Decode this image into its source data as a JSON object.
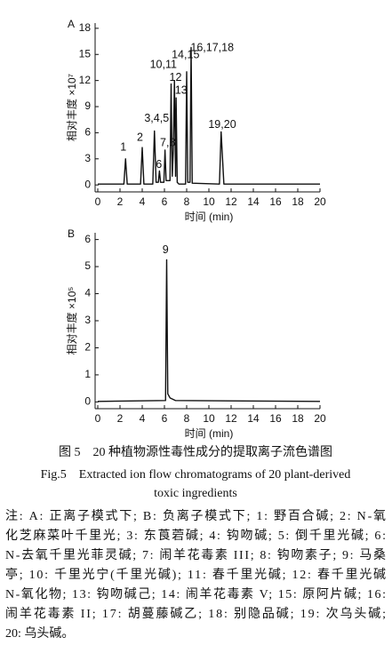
{
  "chart_data": [
    {
      "type": "line",
      "panel": "A",
      "xlabel": "时间 (min)",
      "ylabel": "相对丰度 ×10⁷",
      "xlim": [
        0,
        20
      ],
      "xticks": [
        0,
        2,
        4,
        6,
        8,
        10,
        12,
        14,
        16,
        18,
        20
      ],
      "ylim": [
        -0.8,
        18.6
      ],
      "yticks": [
        0,
        3,
        6,
        9,
        12,
        15,
        18
      ],
      "x": [
        0,
        2.35,
        2.5,
        2.65,
        3.85,
        4.0,
        4.15,
        4.95,
        5.1,
        5.25,
        5.45,
        5.55,
        5.65,
        5.95,
        6.05,
        6.15,
        6.5,
        6.6,
        6.7,
        6.8,
        6.9,
        7.0,
        7.05,
        7.15,
        7.3,
        7.9,
        8.0,
        8.1,
        8.3,
        8.4,
        8.5,
        10.95,
        11.1,
        11.35,
        20
      ],
      "series": [
        {
          "color": "#111111",
          "values": [
            0.1,
            0.1,
            3.0,
            0.1,
            0.1,
            4.3,
            0.1,
            0.1,
            6.2,
            0.3,
            0.3,
            1.6,
            0.3,
            0.3,
            4.0,
            0.5,
            0.5,
            11.6,
            1,
            4,
            12,
            1,
            10,
            0.3,
            0.1,
            0.1,
            13,
            0.3,
            0.3,
            15.8,
            0.2,
            0.1,
            6.1,
            0.1,
            0.1
          ]
        }
      ],
      "annotations": [
        {
          "text": "1",
          "x": 2.3,
          "y": 4.3
        },
        {
          "text": "2",
          "x": 3.8,
          "y": 5.4
        },
        {
          "text": "3,4,5",
          "x": 5.3,
          "y": 7.6
        },
        {
          "text": "6",
          "x": 5.5,
          "y": 2.3
        },
        {
          "text": "7,8",
          "x": 6.3,
          "y": 4.8
        },
        {
          "text": "10,11",
          "x": 5.9,
          "y": 13.8
        },
        {
          "text": "12",
          "x": 7.0,
          "y": 12.3
        },
        {
          "text": "13",
          "x": 7.5,
          "y": 10.8
        },
        {
          "text": "14,15",
          "x": 7.9,
          "y": 14.9
        },
        {
          "text": "16,17,18",
          "x": 10.3,
          "y": 15.7
        },
        {
          "text": "19,20",
          "x": 11.2,
          "y": 6.9
        }
      ]
    },
    {
      "type": "line",
      "panel": "B",
      "xlabel": "时间 (min)",
      "ylabel": "相对丰度 ×10⁵",
      "xlim": [
        0,
        20
      ],
      "xticks": [
        0,
        2,
        4,
        6,
        8,
        10,
        12,
        14,
        16,
        18,
        20
      ],
      "ylim": [
        -0.25,
        6.25
      ],
      "yticks": [
        0,
        1,
        2,
        3,
        4,
        5,
        6
      ],
      "x": [
        0,
        6.1,
        6.2,
        6.3,
        6.5,
        7.0,
        20
      ],
      "series": [
        {
          "color": "#111111",
          "values": [
            0.02,
            0.05,
            5.25,
            0.3,
            0.15,
            0.05,
            0.02
          ]
        }
      ],
      "annotations": [
        {
          "text": "9",
          "x": 6.1,
          "y": 5.6
        }
      ]
    }
  ],
  "caption": {
    "zh": "图 5　20 种植物源性毒性成分的提取离子流色谱图",
    "en": [
      "Fig.5　Extracted ion flow chromatograms of 20 plant-derived",
      "toxic ingredients"
    ]
  },
  "notes": [
    "注: A: 正离子模式下; B: 负离子模式下; 1: 野百合碱; 2: N-氧",
    "化芝麻菜叶千里光; 3: 东莨菪碱; 4: 钩吻碱; 5: 倒千里光碱; 6:",
    "N-去氧千里光菲灵碱; 7: 闹羊花毒素 III; 8: 钩吻素子; 9: 马桑",
    "亭; 10: 千里光宁(千里光碱); 11: 春千里光碱; 12: 春千里光碱",
    "N-氧化物; 13: 钩吻碱己; 14: 闹羊花毒素 V; 15: 原阿片碱; 16:",
    "闹羊花毒素 II; 17: 胡蔓藤碱乙; 18: 别隐品碱; 19: 次乌头碱;",
    "20: 乌头碱。"
  ]
}
